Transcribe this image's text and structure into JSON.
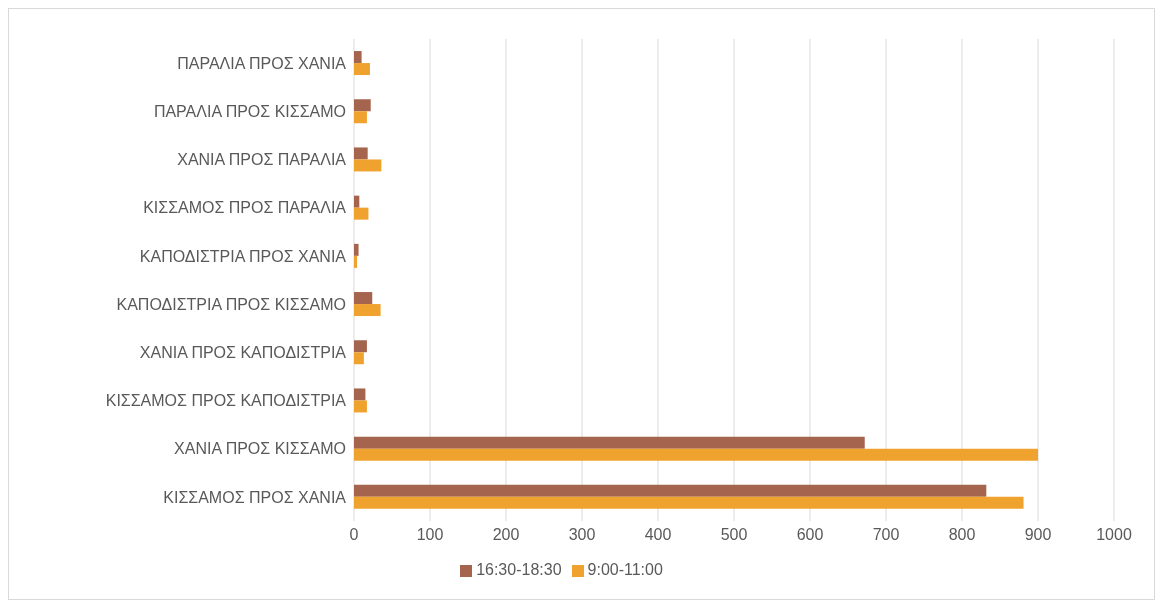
{
  "chart_data": {
    "type": "bar",
    "orientation": "horizontal",
    "categories": [
      "ΠΑΡΑΛΙΑ ΠΡΟΣ ΧΑΝΙΑ",
      "ΠΑΡΑΛΙΑ ΠΡΟΣ ΚΙΣΣΑΜΟ",
      "ΧΑΝΙΑ ΠΡΟΣ ΠΑΡΑΛΙΑ",
      "ΚΙΣΣΑΜΟΣ ΠΡΟΣ ΠΑΡΑΛΙΑ",
      "ΚΑΠΟΔΙΣΤΡΙΑ ΠΡΟΣ ΧΑΝΙΑ",
      "ΚΑΠΟΔΙΣΤΡΙΑ ΠΡΟΣ ΚΙΣΣΑΜΟ",
      "ΧΑΝΙΑ ΠΡΟΣ ΚΑΠΟΔΙΣΤΡΙΑ",
      "ΚΙΣΣΑΜΟΣ ΠΡΟΣ ΚΑΠΟΔΙΣΤΡΙΑ",
      "ΧΑΝΙΑ ΠΡΟΣ ΚΙΣΣΑΜΟ",
      "ΚΙΣΣΑΜΟΣ ΠΡΟΣ ΧΑΝΙΑ"
    ],
    "series": [
      {
        "name": "16:30-18:30",
        "color": "#a5644e",
        "values": [
          10,
          22,
          18,
          7,
          6,
          24,
          17,
          15,
          672,
          832
        ]
      },
      {
        "name": "9:00-11:00",
        "color": "#f0a22e",
        "values": [
          21,
          17,
          36,
          19,
          4,
          35,
          13,
          17,
          900,
          881
        ]
      }
    ],
    "xlim": [
      0,
      1000
    ],
    "xticks": [
      0,
      100,
      200,
      300,
      400,
      500,
      600,
      700,
      800,
      900,
      1000
    ],
    "grid": "x",
    "legend": "bottom"
  }
}
